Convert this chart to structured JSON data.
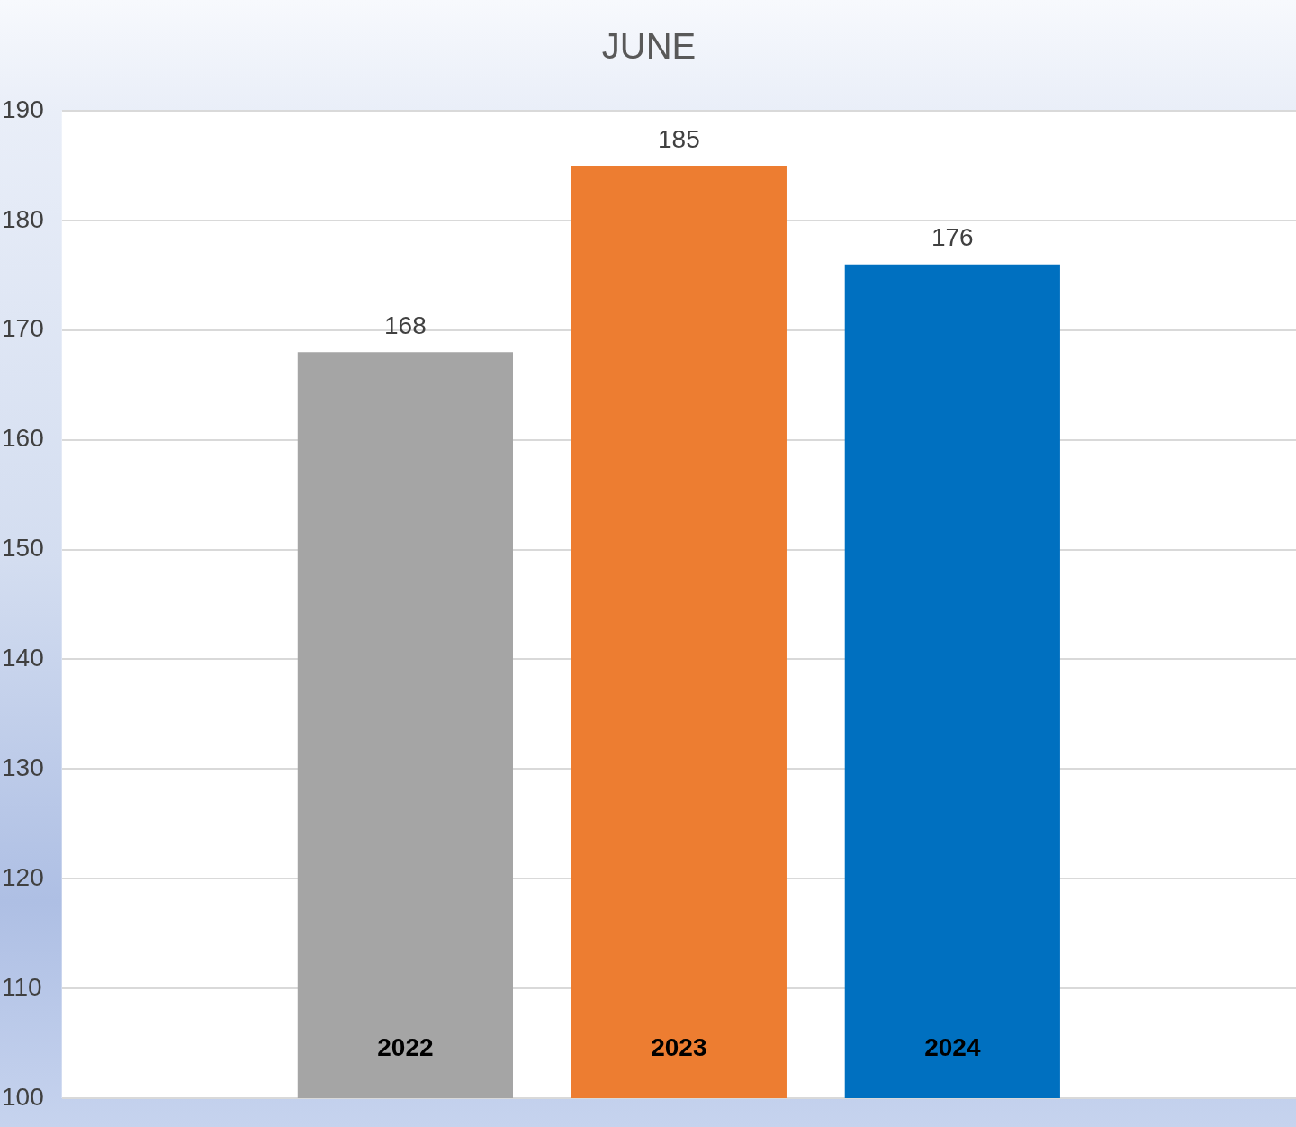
{
  "chart_data": {
    "type": "bar",
    "title": "JUNE",
    "categories": [
      null
    ],
    "series": [
      {
        "name": "2022",
        "color": "#a5a5a5",
        "values": [
          168
        ]
      },
      {
        "name": "2023",
        "color": "#ed7d31",
        "values": [
          185
        ]
      },
      {
        "name": "2024",
        "color": "#0070c0",
        "values": [
          176
        ]
      }
    ],
    "ylim": [
      100,
      190
    ],
    "yticks": [
      100,
      110,
      120,
      130,
      140,
      150,
      160,
      170,
      180,
      190
    ],
    "grid": "y",
    "legend": false,
    "data_labels": true
  }
}
